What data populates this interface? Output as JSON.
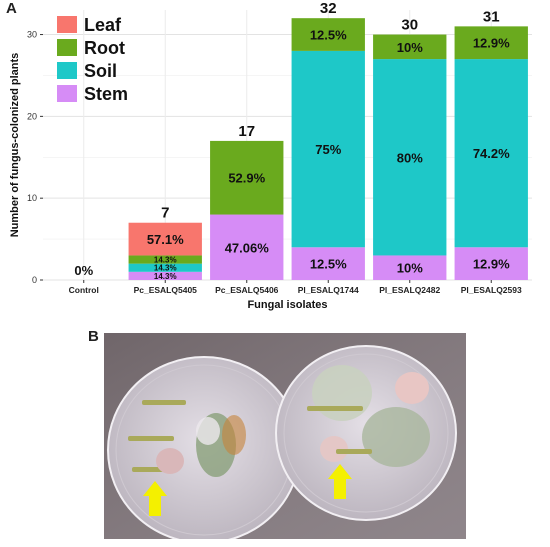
{
  "panels": {
    "a_label": "A",
    "b_label": "B"
  },
  "colors": {
    "Leaf": "#f8766d",
    "Root": "#6aaa1e",
    "Soil": "#1ec8c8",
    "Stem": "#d68cf6",
    "arrow": "#f4f000",
    "photo_bg": "#8a7f86",
    "dish": "#d8d3da"
  },
  "chart_data": {
    "type": "bar",
    "stacked": true,
    "categories": [
      "Control",
      "Pc_ESALQ5405",
      "Pc_ESALQ5406",
      "Pl_ESALQ1744",
      "Pl_ESALQ2482",
      "Pl_ESALQ2593"
    ],
    "totals": [
      "0%",
      "7",
      "17",
      "32",
      "30",
      "31"
    ],
    "series": [
      {
        "name": "Stem",
        "values": [
          0,
          1,
          8,
          4,
          3,
          4
        ],
        "labels": [
          "",
          "14.3%",
          "47.06%",
          "12.5%",
          "10%",
          "12.9%"
        ]
      },
      {
        "name": "Soil",
        "values": [
          0,
          1,
          0,
          24,
          24,
          23
        ],
        "labels": [
          "",
          "14.3%",
          "",
          "75%",
          "80%",
          "74.2%"
        ]
      },
      {
        "name": "Root",
        "values": [
          0,
          1,
          9,
          4,
          3,
          4
        ],
        "labels": [
          "",
          "14.3%",
          "52.9%",
          "12.5%",
          "10%",
          "12.9%"
        ]
      },
      {
        "name": "Leaf",
        "values": [
          0,
          4,
          0,
          0,
          0,
          0
        ],
        "labels": [
          "",
          "57.1%",
          "",
          "",
          "",
          ""
        ]
      }
    ],
    "legend_order": [
      "Leaf",
      "Root",
      "Soil",
      "Stem"
    ],
    "legend_position": "top-left",
    "xlabel": "Fungal isolates",
    "ylabel": "Number of fungus-colonized plants",
    "yticks": [
      0,
      10,
      20,
      30
    ],
    "ylim": [
      0,
      33
    ],
    "grid": true
  }
}
